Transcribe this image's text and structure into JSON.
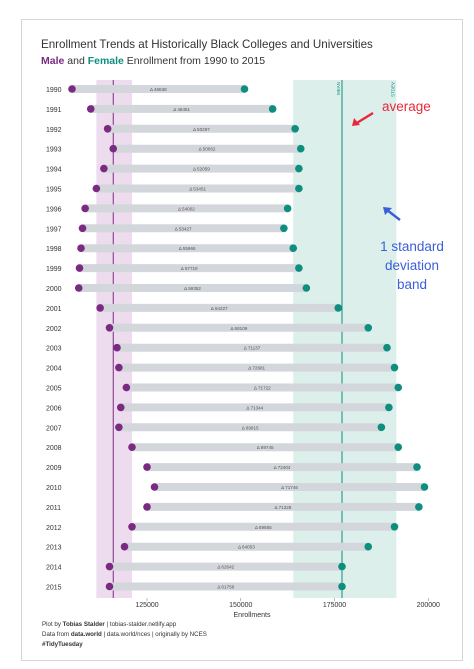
{
  "colors": {
    "male": "#7b2a82",
    "female": "#0e8e7f",
    "dumbbell_bar": "#d3d6db",
    "male_sd_band": "#ecdcee",
    "female_sd_band": "#dcefeb",
    "annotation_red": "#e8283c",
    "annotation_blue": "#3a5fd9",
    "text": "#333333"
  },
  "chart_data": {
    "type": "dumbbell",
    "title": "Enrollment Trends at Historically Black Colleges and Universities",
    "subtitle": {
      "male_word": "Male",
      "and_word": "and",
      "female_word": "Female",
      "rest": "Enrollment from 1990 to 2015"
    },
    "xlabel": "Enrollments",
    "ylabel": "",
    "xlim": [
      105000,
      201000
    ],
    "xticks": [
      125000,
      150000,
      175000,
      200000
    ],
    "xtick_labels": [
      "125000",
      "150000",
      "175000",
      "200000"
    ],
    "grid": false,
    "legend": "none",
    "years": [
      "1990",
      "1991",
      "1992",
      "1993",
      "1994",
      "1995",
      "1996",
      "1997",
      "1998",
      "1999",
      "2000",
      "2001",
      "2002",
      "2003",
      "2004",
      "2005",
      "2006",
      "2007",
      "2008",
      "2009",
      "2010",
      "2011",
      "2012",
      "2013",
      "2014",
      "2015"
    ],
    "series": [
      {
        "name": "Male",
        "values": [
          105000,
          110000,
          114500,
          116000,
          113500,
          111500,
          108500,
          107800,
          107400,
          107000,
          106800,
          112500,
          115000,
          117000,
          117500,
          119500,
          118000,
          117500,
          121000,
          125000,
          127000,
          125000,
          121000,
          119000,
          115000,
          115000
        ]
      },
      {
        "name": "Female",
        "values": [
          151000,
          158500,
          164500,
          166000,
          165500,
          165500,
          162500,
          161500,
          164000,
          165500,
          167500,
          176000,
          184000,
          189000,
          191000,
          192000,
          189500,
          187500,
          192000,
          197000,
          199000,
          197500,
          191000,
          184000,
          177000,
          177000
        ]
      }
    ],
    "gap_labels": [
      "Δ 46838",
      "Δ 48451",
      "Δ 50297",
      "Δ 50062",
      "Δ 52059",
      "Δ 53451",
      "Δ 54002",
      "Δ 53427",
      "Δ 55966",
      "Δ 57719",
      "Δ 59352",
      "Δ 64227",
      "Δ 68109",
      "Δ 71137",
      "Δ 72681",
      "Δ 71722",
      "Δ 71344",
      "Δ 69915",
      "Δ 69745",
      "Δ 72404",
      "Δ 71746",
      "Δ 71328",
      "Δ 69555",
      "Δ 64053",
      "Δ 62642",
      "Δ 61758"
    ],
    "reference_lines": [
      {
        "series": "Male",
        "label": "",
        "value": 116000,
        "sd_band": [
          111500,
          121000
        ]
      },
      {
        "series": "Female",
        "label_rotated": "MEAN",
        "sd_label_rotated": "STDEV",
        "value": 177000,
        "sd_band": [
          164000,
          191500
        ]
      }
    ],
    "annotations": [
      {
        "text": "average"
      },
      {
        "text_lines": [
          "1 standard",
          "deviation",
          "band"
        ]
      }
    ],
    "caption": {
      "line1_prefix": "Plot by ",
      "line1_author": "Tobias Stalder",
      "line1_rest": " | tobias-stalder.netlify.app",
      "line2_prefix": "Data from ",
      "line2_source": "data.world",
      "line2_rest": " | data.world/nces | originally by NCES",
      "line3": "#TidyTuesday"
    }
  }
}
